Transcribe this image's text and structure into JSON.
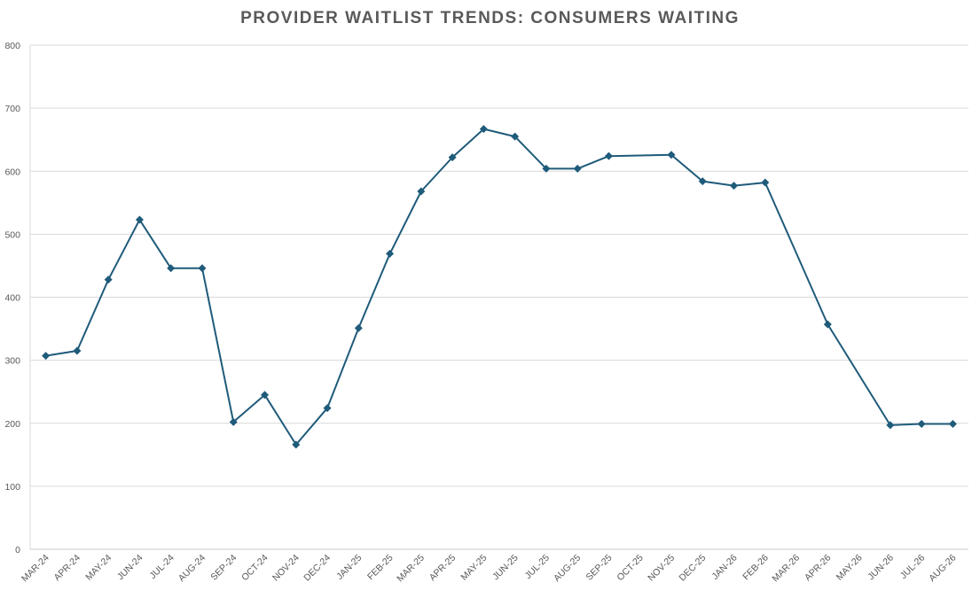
{
  "chart_data": {
    "type": "line",
    "title": "PROVIDER WAITLIST TRENDS: CONSUMERS WAITING",
    "xlabel": "",
    "ylabel": "",
    "ylim": [
      0,
      800
    ],
    "yticks": [
      0,
      100,
      200,
      300,
      400,
      500,
      600,
      700,
      800
    ],
    "grid": true,
    "legend": "none",
    "categories": [
      "MAR-24",
      "APR-24",
      "MAY-24",
      "JUN-24",
      "JUL-24",
      "AUG-24",
      "SEP-24",
      "OCT-24",
      "NOV-24",
      "DEC-24",
      "JAN-25",
      "FEB-25",
      "MAR-25",
      "APR-25",
      "MAY-25",
      "JUN-25",
      "JUL-25",
      "AUG-25",
      "SEP-25",
      "OCT-25",
      "NOV-25",
      "DEC-25",
      "JAN-26",
      "FEB-26",
      "MAR-26",
      "APR-26",
      "MAY-26",
      "JUN-26",
      "JUL-26",
      "AUG-26"
    ],
    "series": [
      {
        "color": "#1f5b7a",
        "marker": "diamond",
        "values": [
          307,
          315,
          428,
          523,
          446,
          446,
          202,
          245,
          166,
          224,
          351,
          469,
          568,
          622,
          667,
          655,
          604,
          604,
          624,
          null,
          626,
          584,
          577,
          582,
          null,
          357,
          null,
          197,
          199,
          199
        ]
      }
    ]
  }
}
